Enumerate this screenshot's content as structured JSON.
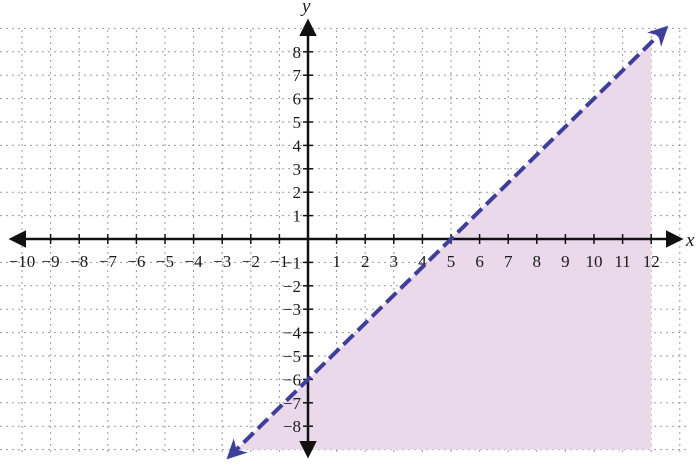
{
  "chart_data": {
    "type": "line",
    "xlabel": "x",
    "ylabel": "y",
    "xlim": [
      -11,
      13
    ],
    "ylim": [
      -9,
      9
    ],
    "xticks": [
      -10,
      -9,
      -8,
      -7,
      -6,
      -5,
      -4,
      -3,
      -2,
      -1,
      1,
      2,
      3,
      4,
      5,
      6,
      7,
      8,
      9,
      10,
      11,
      12
    ],
    "yticks": [
      -8,
      -7,
      -6,
      -5,
      -4,
      -3,
      -2,
      -1,
      1,
      2,
      3,
      4,
      5,
      6,
      7,
      8
    ],
    "grid": true,
    "series": [
      {
        "line_style": "dashed",
        "slope": 1.2,
        "intercept": -6,
        "x": [
          -2.75,
          12.5
        ],
        "y": [
          -9.3,
          9.0
        ],
        "color": "#3f3f9b"
      }
    ],
    "shaded_region": {
      "description_side": "below-right of line",
      "x_range": [
        -2.75,
        12
      ],
      "y_range": [
        -9,
        8.4
      ],
      "color": "#ead9ea"
    }
  }
}
